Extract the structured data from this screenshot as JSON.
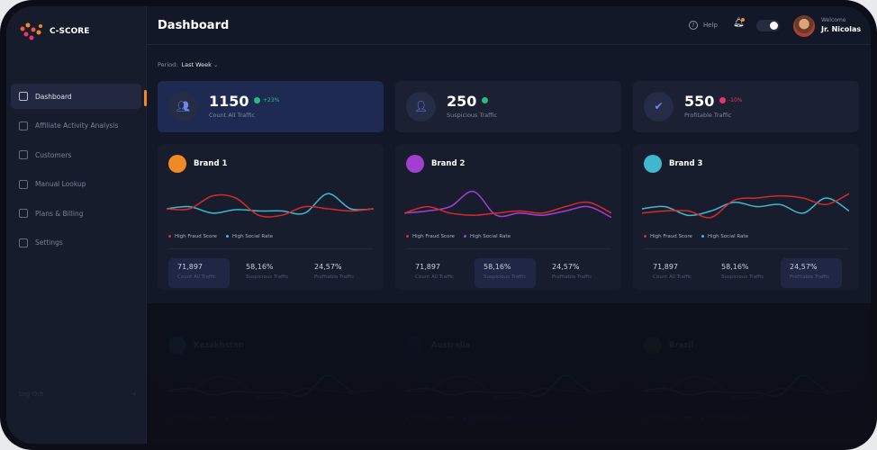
{
  "app": {
    "logo_text": "C-SCORE"
  },
  "sidebar": {
    "items": [
      {
        "label": "Dashboard",
        "icon": "grid-icon"
      },
      {
        "label": "Affiliate Activity Analysis",
        "icon": "pie-icon"
      },
      {
        "label": "Customers",
        "icon": "smile-icon"
      },
      {
        "label": "Manual Lookup",
        "icon": "document-icon"
      },
      {
        "label": "Plans & Billing",
        "icon": "card-icon"
      },
      {
        "label": "Settings",
        "icon": "gear-icon"
      }
    ],
    "logout": "Log Out"
  },
  "header": {
    "title": "Dashboard",
    "help": "Help",
    "welcome": "Welcome",
    "user": "Jr. Nicolas"
  },
  "period": {
    "label": "Period:",
    "value": "Last Week"
  },
  "stats": [
    {
      "value": "1150",
      "change": "+23%",
      "label": "Count All Traffic",
      "trend": "up"
    },
    {
      "value": "250",
      "change": "",
      "label": "Suspicious Traffic",
      "trend": "up"
    },
    {
      "value": "550",
      "change": "-10%",
      "label": "Profitable Traffic",
      "trend": "down"
    }
  ],
  "colors": {
    "accent": "#f08a24",
    "fraud": "#d42a2a",
    "social": "#3fb8cf",
    "social_alt": "#a23fd0",
    "up": "#22c07a",
    "down": "#e8366a"
  },
  "legend": {
    "fraud": "High Fraud Score",
    "social": "High Social Rate"
  },
  "brands": [
    {
      "name": "Brand 1",
      "icon_color": "#f08a24",
      "fraud": [
        50,
        50,
        80,
        75,
        35,
        35,
        55,
        50,
        45,
        50
      ],
      "social": [
        50,
        55,
        40,
        48,
        45,
        45,
        40,
        85,
        50,
        50
      ],
      "stats": [
        {
          "v": "71,897",
          "l": "Count All Traffic"
        },
        {
          "v": "58,16%",
          "l": "Suspicious Traffic"
        },
        {
          "v": "24,57%",
          "l": "Profitable Traffic"
        }
      ],
      "hl": 0
    },
    {
      "name": "Brand 2",
      "icon_color": "#a23fd0",
      "fraud": [
        40,
        55,
        40,
        35,
        40,
        45,
        40,
        55,
        65,
        40
      ],
      "social": [
        40,
        45,
        55,
        90,
        35,
        40,
        35,
        45,
        55,
        30
      ],
      "stats": [
        {
          "v": "71,897",
          "l": "Count All Traffic"
        },
        {
          "v": "58,16%",
          "l": "Suspicious Traffic"
        },
        {
          "v": "24,57%",
          "l": "Profitable Traffic"
        }
      ],
      "hl": 1
    },
    {
      "name": "Brand 3",
      "icon_color": "#3fb8cf",
      "fraud": [
        40,
        45,
        45,
        30,
        70,
        75,
        80,
        75,
        60,
        85
      ],
      "social": [
        50,
        55,
        35,
        45,
        65,
        55,
        60,
        40,
        75,
        45
      ],
      "stats": [
        {
          "v": "71,897",
          "l": "Count All Traffic"
        },
        {
          "v": "58,16%",
          "l": "Suspicious Traffic"
        },
        {
          "v": "24,57%",
          "l": "Profitable Traffic"
        }
      ],
      "hl": 2
    }
  ],
  "countries": [
    {
      "name": "Kazakhstan",
      "icon_color": "#2aa6c0"
    },
    {
      "name": "Australia",
      "icon_color": "#233a8a"
    },
    {
      "name": "Brazil",
      "icon_color": "#2a9a3a"
    }
  ]
}
